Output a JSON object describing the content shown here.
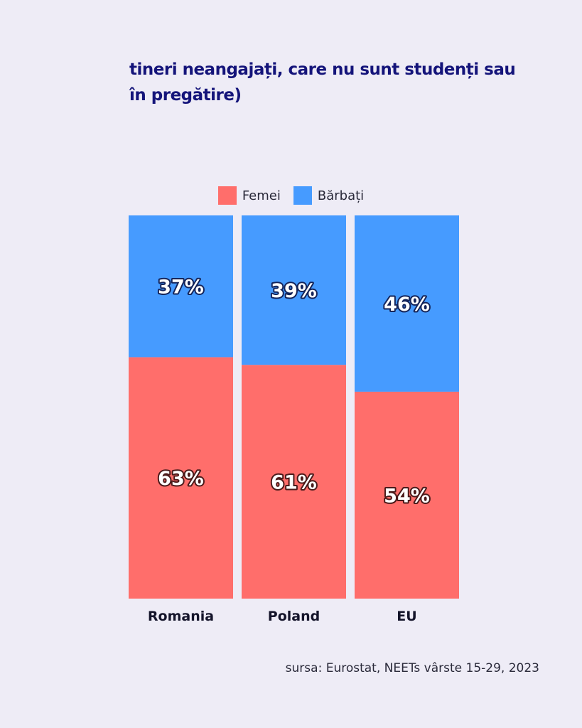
{
  "title": "tineri neangajați, care nu sunt studenți sau în pregătire)",
  "source": "sursa: Eurostat, NEETs vârste 15-29, 2023",
  "colors": {
    "femei": "#ff6e6b",
    "barbati": "#469bff",
    "background": "#eeecf6",
    "title": "#14147a"
  },
  "chart_data": {
    "type": "bar",
    "stacked": true,
    "normalized": true,
    "categories": [
      "Romania",
      "Poland",
      "EU"
    ],
    "series": [
      {
        "name": "Femei",
        "values": [
          63,
          61,
          54
        ],
        "labels": [
          "63%",
          "61%",
          "54%"
        ]
      },
      {
        "name": "Bărbați",
        "values": [
          37,
          39,
          46
        ],
        "labels": [
          "37%",
          "39%",
          "46%"
        ]
      }
    ],
    "ylim": [
      0,
      100
    ],
    "legend": "top-center",
    "grid": false,
    "xlabel": "",
    "ylabel": ""
  }
}
